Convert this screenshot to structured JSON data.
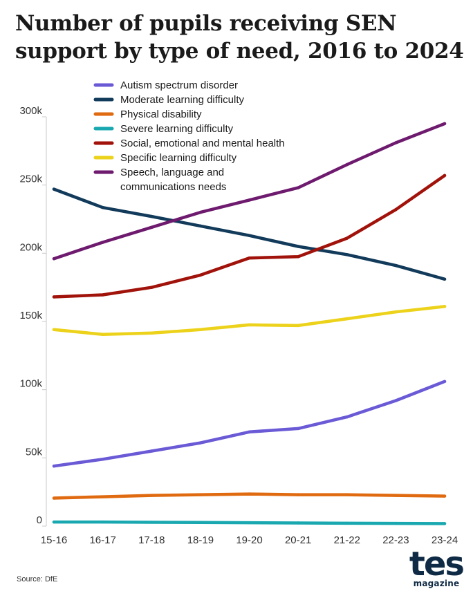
{
  "title": {
    "line1": "Number of pupils receiving SEN",
    "line2": "support by type of need, 2016 to 2024"
  },
  "source": "Source: DfE",
  "logo": {
    "main": "tes",
    "sub": "magazine"
  },
  "chart_data": {
    "type": "line",
    "title": "Number of pupils receiving SEN support by type of need, 2016 to 2024",
    "xlabel": "",
    "ylabel": "",
    "grid": false,
    "legend_position": "top-center",
    "ylim": [
      0,
      300000
    ],
    "y_ticks": [
      0,
      50000,
      100000,
      150000,
      200000,
      250000,
      300000
    ],
    "y_tick_labels": [
      "0",
      "50k",
      "100k",
      "150k",
      "200k",
      "250k",
      "300k"
    ],
    "categories": [
      "15-16",
      "16-17",
      "17-18",
      "18-19",
      "19-20",
      "20-21",
      "21-22",
      "22-23",
      "23-24"
    ],
    "series": [
      {
        "name": "Autism spectrum disorder",
        "color": "#6a5ad6",
        "values": [
          44000,
          49000,
          55000,
          61000,
          69000,
          71500,
          80000,
          92000,
          106000
        ]
      },
      {
        "name": "Moderate learning difficulty",
        "color": "#123a5a",
        "values": [
          247000,
          233500,
          227000,
          220000,
          213000,
          205000,
          199000,
          191000,
          181000
        ]
      },
      {
        "name": "Physical disability",
        "color": "#e06a10",
        "values": [
          20500,
          21500,
          22500,
          23000,
          23500,
          23000,
          23000,
          22500,
          22000
        ]
      },
      {
        "name": "Severe learning difficulty",
        "color": "#1aa8b0",
        "values": [
          3000,
          3000,
          2800,
          2700,
          2500,
          2300,
          2100,
          2000,
          1800
        ]
      },
      {
        "name": "Social, emotional and mental health",
        "color": "#a0120a",
        "values": [
          168000,
          169500,
          175000,
          184000,
          196500,
          197500,
          211000,
          232000,
          257000
        ]
      },
      {
        "name": "Specific learning difficulty",
        "color": "#ecd21a",
        "values": [
          144000,
          140500,
          141500,
          144000,
          147500,
          147000,
          152000,
          157000,
          161000
        ]
      },
      {
        "name": "Speech, language and communications needs",
        "color": "#6e1a6e",
        "legend_lines": [
          "Speech, language and",
          "communications needs"
        ],
        "values": [
          196000,
          208000,
          219000,
          230000,
          239000,
          248000,
          265000,
          281000,
          295000
        ]
      }
    ]
  }
}
